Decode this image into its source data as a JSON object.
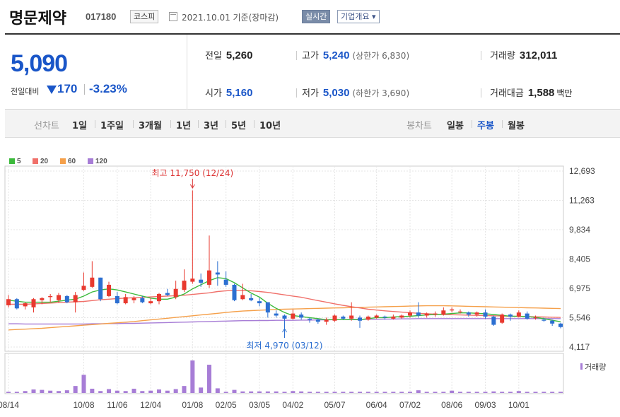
{
  "company": {
    "name": "명문제약",
    "code": "017180",
    "market": "코스피"
  },
  "date_text": "2021.10.01 기준(장마감)",
  "buttons": {
    "realtime": "실시간",
    "overview": "기업개요 ▾"
  },
  "quote": {
    "price": "5,090",
    "change_label": "전일대비",
    "change_amount": "170",
    "change_pct": "-3.23%",
    "prev_close_label": "전일",
    "prev_close": "5,260",
    "open_label": "시가",
    "open": "5,160",
    "high_label": "고가",
    "high": "5,240",
    "upper_limit": "(상한가 6,830)",
    "low_label": "저가",
    "low": "5,030",
    "lower_limit": "(하한가 3,690)",
    "volume_label": "거래량",
    "volume": "312,011",
    "amount_label": "거래대금",
    "amount": "1,588",
    "amount_unit": "백만"
  },
  "toolbar": {
    "line_label": "선차트",
    "periods": [
      "1일",
      "1주일",
      "3개월",
      "1년",
      "3년",
      "5년",
      "10년"
    ],
    "candle_label": "봉차트",
    "candle_types": [
      "일봉",
      "주봉",
      "월봉"
    ],
    "active_candle": "주봉"
  },
  "colors": {
    "up": "#e8392f",
    "down": "#2c6fd1",
    "ma5": "#3cba3c",
    "ma20": "#f0706a",
    "ma60": "#f5a04a",
    "ma120": "#a77dd6",
    "volume": "#a77dd6"
  },
  "chart_data": {
    "type": "candlestick",
    "legend": [
      "5",
      "20",
      "60",
      "120"
    ],
    "y_ticks": [
      "12,693",
      "11,263",
      "9,834",
      "8,405",
      "6,975",
      "5,546",
      "4,117"
    ],
    "ylim": [
      4117,
      12693
    ],
    "x_ticks": [
      "08/14",
      "10/08",
      "11/06",
      "12/04",
      "01/08",
      "02/05",
      "03/05",
      "04/02",
      "05/07",
      "06/04",
      "07/02",
      "08/06",
      "09/03",
      "10/01"
    ],
    "annotations": {
      "high": "최고 11,750 (12/24)",
      "low": "최저 4,970 (03/12)"
    },
    "volume_label": "거래량",
    "candles": [
      [
        6150,
        6450,
        6650,
        6050
      ],
      [
        6450,
        6000,
        6500,
        5950
      ],
      [
        6100,
        6250,
        6300,
        5950
      ],
      [
        6050,
        6450,
        6500,
        5800
      ],
      [
        6400,
        6500,
        6550,
        6200
      ],
      [
        6550,
        6600,
        6700,
        6300
      ],
      [
        6400,
        6650,
        6750,
        6300
      ],
      [
        6600,
        6300,
        6650,
        6250
      ],
      [
        6300,
        6650,
        6800,
        5800
      ],
      [
        6900,
        7100,
        7750,
        6850
      ],
      [
        7050,
        7500,
        8300,
        7000
      ],
      [
        7500,
        6450,
        7500,
        6350
      ],
      [
        6600,
        7150,
        7300,
        6550
      ],
      [
        6600,
        6250,
        6800,
        6200
      ],
      [
        6250,
        6550,
        6700,
        6200
      ],
      [
        6400,
        6500,
        6600,
        6250
      ],
      [
        6500,
        6300,
        6600,
        6250
      ],
      [
        6250,
        6350,
        6500,
        6200
      ],
      [
        6350,
        6700,
        6750,
        6200
      ],
      [
        6750,
        6650,
        6950,
        6600
      ],
      [
        6550,
        6950,
        7350,
        6450
      ],
      [
        6900,
        7350,
        7900,
        6800
      ],
      [
        7300,
        7450,
        11750,
        7200
      ],
      [
        7400,
        7250,
        7700,
        7050
      ],
      [
        7150,
        7850,
        9550,
        7000
      ],
      [
        7750,
        7650,
        8300,
        7100
      ],
      [
        7400,
        7150,
        7800,
        7050
      ],
      [
        7150,
        6400,
        7200,
        6350
      ],
      [
        6450,
        6650,
        7200,
        6400
      ],
      [
        6500,
        6400,
        6700,
        6350
      ],
      [
        6350,
        6250,
        6500,
        6100
      ],
      [
        6300,
        5800,
        6300,
        5550
      ],
      [
        5750,
        5650,
        5900,
        5550
      ],
      [
        5650,
        5500,
        5700,
        4970
      ],
      [
        5500,
        5750,
        5950,
        5450
      ],
      [
        5700,
        5550,
        5800,
        5450
      ],
      [
        5500,
        5450,
        5550,
        5300
      ],
      [
        5450,
        5350,
        5500,
        5250
      ],
      [
        5350,
        5450,
        5550,
        5200
      ],
      [
        5400,
        5650,
        5700,
        5350
      ],
      [
        5600,
        5500,
        5650,
        5450
      ],
      [
        5500,
        5650,
        6300,
        5400
      ],
      [
        5550,
        5400,
        5650,
        5050
      ],
      [
        5450,
        5600,
        5650,
        5400
      ],
      [
        5550,
        5650,
        5700,
        5500
      ],
      [
        5600,
        5550,
        5650,
        5450
      ],
      [
        5500,
        5600,
        5700,
        5450
      ],
      [
        5550,
        5650,
        5700,
        5500
      ],
      [
        5650,
        5800,
        5900,
        5550
      ],
      [
        5800,
        5650,
        6300,
        5550
      ],
      [
        5650,
        5750,
        5800,
        5550
      ],
      [
        5700,
        5750,
        5850,
        5600
      ],
      [
        5700,
        5900,
        6050,
        5650
      ],
      [
        5900,
        5950,
        6050,
        5800
      ],
      [
        5850,
        5850,
        5950,
        5750
      ],
      [
        5800,
        5700,
        5850,
        5600
      ],
      [
        5700,
        5800,
        5850,
        5600
      ],
      [
        5800,
        5600,
        5950,
        5500
      ],
      [
        5600,
        5200,
        5650,
        5150
      ],
      [
        5300,
        5700,
        5750,
        5250
      ],
      [
        5700,
        5600,
        5750,
        5400
      ],
      [
        5600,
        5800,
        5900,
        5550
      ],
      [
        5750,
        5500,
        5850,
        5450
      ],
      [
        5550,
        5550,
        5650,
        5450
      ],
      [
        5450,
        5400,
        5550,
        5350
      ],
      [
        5400,
        5260,
        5450,
        5150
      ],
      [
        5260,
        5090,
        5300,
        5030
      ]
    ],
    "volume": [
      3,
      3,
      5,
      9,
      8,
      6,
      5,
      7,
      18,
      47,
      11,
      5,
      10,
      6,
      5,
      11,
      5,
      6,
      9,
      6,
      10,
      18,
      84,
      14,
      73,
      12,
      3,
      8,
      4,
      4,
      4,
      4,
      4,
      3,
      5,
      4,
      3,
      3,
      3,
      3,
      3,
      3,
      3,
      3,
      3,
      3,
      3,
      3,
      3,
      7,
      3,
      3,
      3,
      6,
      3,
      3,
      3,
      3,
      4,
      3,
      3,
      5,
      3,
      3,
      3,
      3,
      3
    ],
    "ma5": [
      6400,
      6350,
      6300,
      6300,
      6300,
      6300,
      6350,
      6400,
      6450,
      6600,
      6800,
      6900,
      6950,
      6900,
      6800,
      6700,
      6600,
      6500,
      6450,
      6450,
      6550,
      6700,
      6950,
      7150,
      7350,
      7500,
      7450,
      7250,
      7000,
      6750,
      6550,
      6250,
      6000,
      5800,
      5650,
      5600,
      5550,
      5500,
      5450,
      5450,
      5450,
      5450,
      5450,
      5500,
      5550,
      5550,
      5580,
      5600,
      5620,
      5650,
      5680,
      5700,
      5720,
      5750,
      5780,
      5780,
      5760,
      5740,
      5700,
      5660,
      5620,
      5620,
      5600,
      5560,
      5500,
      5420,
      5350
    ],
    "ma20": [
      6200,
      6200,
      6200,
      6220,
      6240,
      6260,
      6280,
      6300,
      6320,
      6340,
      6380,
      6420,
      6450,
      6480,
      6500,
      6520,
      6540,
      6560,
      6580,
      6600,
      6620,
      6640,
      6680,
      6720,
      6760,
      6820,
      6860,
      6880,
      6880,
      6860,
      6820,
      6780,
      6720,
      6660,
      6600,
      6540,
      6460,
      6380,
      6300,
      6220,
      6150,
      6080,
      6020,
      5960,
      5920,
      5880,
      5850,
      5820,
      5790,
      5760,
      5740,
      5720,
      5700,
      5690,
      5680,
      5670,
      5660,
      5650,
      5640,
      5630,
      5620,
      5610,
      5600,
      5590,
      5580,
      5570,
      5560
    ],
    "ma60": [
      4950,
      4970,
      4990,
      5010,
      5030,
      5060,
      5090,
      5120,
      5150,
      5180,
      5210,
      5240,
      5270,
      5300,
      5330,
      5360,
      5400,
      5440,
      5480,
      5520,
      5560,
      5600,
      5640,
      5680,
      5720,
      5760,
      5800,
      5840,
      5870,
      5890,
      5910,
      5930,
      5950,
      5960,
      5970,
      5980,
      5990,
      6000,
      6010,
      6020,
      6030,
      6040,
      6050,
      6060,
      6070,
      6080,
      6090,
      6100,
      6110,
      6120,
      6130,
      6130,
      6130,
      6120,
      6110,
      6100,
      6090,
      6080,
      6070,
      6060,
      6050,
      6040,
      6030,
      6020,
      6010,
      6000,
      5990
    ],
    "ma120": [
      5250,
      5250,
      5240,
      5240,
      5240,
      5240,
      5240,
      5240,
      5240,
      5240,
      5250,
      5250,
      5260,
      5260,
      5270,
      5270,
      5280,
      5290,
      5300,
      5310,
      5320,
      5330,
      5340,
      5350,
      5360,
      5370,
      5380,
      5390,
      5400,
      5400,
      5410,
      5410,
      5420,
      5420,
      5420,
      5430,
      5430,
      5440,
      5440,
      5450,
      5450,
      5460,
      5460,
      5470,
      5470,
      5480,
      5480,
      5490,
      5490,
      5500,
      5500,
      5500,
      5500,
      5500,
      5500,
      5500,
      5500,
      5500,
      5500,
      5500,
      5500,
      5500,
      5500,
      5500,
      5500,
      5500,
      5500
    ]
  }
}
